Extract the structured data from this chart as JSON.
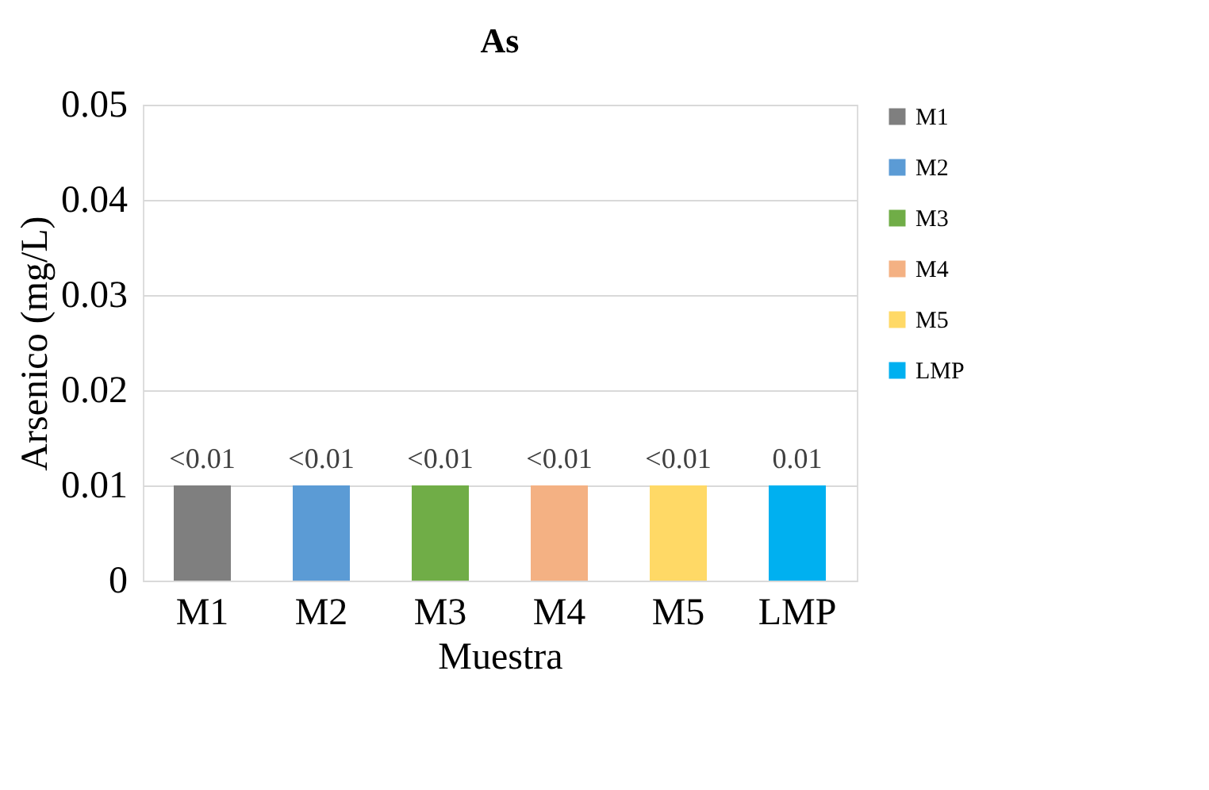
{
  "chart_data": {
    "type": "bar",
    "title": "As",
    "xlabel": "Muestra",
    "ylabel": "Arsenico (mg/L)",
    "categories": [
      "M1",
      "M2",
      "M3",
      "M4",
      "M5",
      "LMP"
    ],
    "series": [
      {
        "name": "M1",
        "color": "#7f7f7f",
        "values": [
          0.01,
          null,
          null,
          null,
          null,
          null
        ],
        "value_labels": [
          "<0.01",
          null,
          null,
          null,
          null,
          null
        ]
      },
      {
        "name": "M2",
        "color": "#5b9bd5",
        "values": [
          null,
          0.01,
          null,
          null,
          null,
          null
        ],
        "value_labels": [
          null,
          "<0.01",
          null,
          null,
          null,
          null
        ]
      },
      {
        "name": "M3",
        "color": "#70ad47",
        "values": [
          null,
          null,
          0.01,
          null,
          null,
          null
        ],
        "value_labels": [
          null,
          null,
          "<0.01",
          null,
          null,
          null
        ]
      },
      {
        "name": "M4",
        "color": "#f4b183",
        "values": [
          null,
          null,
          null,
          0.01,
          null,
          null
        ],
        "value_labels": [
          null,
          null,
          null,
          "<0.01",
          null,
          null
        ]
      },
      {
        "name": "M5",
        "color": "#ffd966",
        "values": [
          null,
          null,
          null,
          null,
          0.01,
          null
        ],
        "value_labels": [
          null,
          null,
          null,
          null,
          "<0.01",
          null
        ]
      },
      {
        "name": "LMP",
        "color": "#00b0f0",
        "values": [
          null,
          null,
          null,
          null,
          null,
          0.01
        ],
        "value_labels": [
          null,
          null,
          null,
          null,
          null,
          "0.01"
        ]
      }
    ],
    "ylim": [
      0,
      0.05
    ],
    "yticks": [
      0,
      0.01,
      0.02,
      0.03,
      0.04,
      0.05
    ],
    "grid": "y",
    "legend": "right"
  }
}
